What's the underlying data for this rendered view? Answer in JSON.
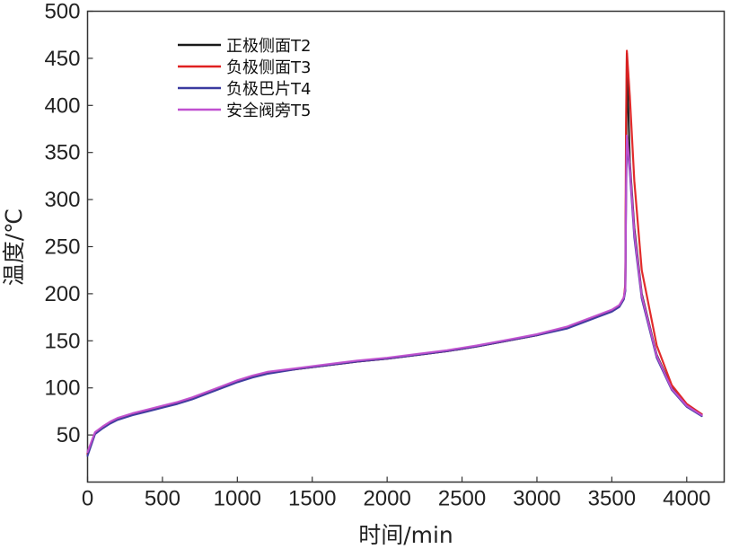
{
  "chart_data": {
    "type": "line",
    "title": "",
    "xlabel": "时间/min",
    "ylabel": "温度/℃",
    "xlim": [
      0,
      4250
    ],
    "ylim": [
      0,
      500
    ],
    "x_ticks": [
      "0",
      "500",
      "1000",
      "1500",
      "2000",
      "2500",
      "3000",
      "3500",
      "4000"
    ],
    "y_ticks": [
      "50",
      "100",
      "150",
      "200",
      "250",
      "300",
      "350",
      "400",
      "450",
      "500"
    ],
    "grid": false,
    "legend_position": "top-left",
    "series": [
      {
        "name": "正极侧面T2",
        "color": "#1a1a1a",
        "x": [
          0,
          50,
          100,
          150,
          200,
          300,
          400,
          500,
          600,
          700,
          800,
          900,
          1000,
          1100,
          1200,
          1400,
          1600,
          1800,
          2000,
          2200,
          2400,
          2600,
          2800,
          3000,
          3200,
          3400,
          3500,
          3550,
          3580,
          3590,
          3595,
          3600,
          3620,
          3650,
          3700,
          3800,
          3900,
          4000,
          4100
        ],
        "values": [
          30,
          52,
          58,
          63,
          67,
          72,
          76,
          80,
          84,
          89,
          95,
          101,
          107,
          112,
          116,
          120,
          124,
          128,
          131,
          135,
          139,
          144,
          150,
          156,
          164,
          176,
          182,
          187,
          195,
          205,
          320,
          455,
          340,
          270,
          200,
          135,
          100,
          82,
          72
        ]
      },
      {
        "name": "负极侧面T3",
        "color": "#e02020",
        "x": [
          0,
          50,
          100,
          150,
          200,
          300,
          400,
          500,
          600,
          700,
          800,
          900,
          1000,
          1100,
          1200,
          1400,
          1600,
          1800,
          2000,
          2200,
          2400,
          2600,
          2800,
          3000,
          3200,
          3400,
          3500,
          3550,
          3580,
          3590,
          3595,
          3600,
          3620,
          3650,
          3700,
          3800,
          3900,
          4000,
          4100
        ],
        "values": [
          30,
          52,
          58,
          63,
          67,
          72,
          76,
          80,
          84,
          89,
          95,
          101,
          107,
          112,
          116,
          120,
          124,
          128,
          131,
          135,
          139,
          144,
          150,
          156,
          164,
          176,
          182,
          187,
          195,
          210,
          380,
          458,
          410,
          320,
          225,
          145,
          103,
          83,
          72
        ]
      },
      {
        "name": "负极巴片T4",
        "color": "#3a3aa0",
        "x": [
          0,
          50,
          100,
          150,
          200,
          300,
          400,
          500,
          600,
          700,
          800,
          900,
          1000,
          1100,
          1200,
          1400,
          1600,
          1800,
          2000,
          2200,
          2400,
          2600,
          2800,
          3000,
          3200,
          3400,
          3500,
          3550,
          3580,
          3590,
          3595,
          3600,
          3620,
          3650,
          3700,
          3800,
          3900,
          4000,
          4100
        ],
        "values": [
          28,
          51,
          57,
          62,
          66,
          71,
          75,
          79,
          83,
          88,
          94,
          100,
          106,
          111,
          115,
          120,
          124,
          128,
          131,
          135,
          139,
          144,
          150,
          156,
          163,
          175,
          181,
          186,
          194,
          203,
          300,
          362,
          330,
          260,
          195,
          132,
          98,
          80,
          70
        ]
      },
      {
        "name": "安全阀旁T5",
        "color": "#c050d0",
        "x": [
          0,
          50,
          100,
          150,
          200,
          300,
          400,
          500,
          600,
          700,
          800,
          900,
          1000,
          1100,
          1200,
          1400,
          1600,
          1800,
          2000,
          2200,
          2400,
          2600,
          2800,
          3000,
          3200,
          3400,
          3500,
          3550,
          3580,
          3590,
          3595,
          3600,
          3620,
          3650,
          3700,
          3800,
          3900,
          4000,
          4100
        ],
        "values": [
          32,
          53,
          59,
          64,
          68,
          73,
          77,
          81,
          85,
          90,
          96,
          102,
          108,
          113,
          117,
          121,
          125,
          129,
          132,
          136,
          140,
          145,
          151,
          157,
          165,
          177,
          183,
          188,
          196,
          206,
          310,
          368,
          335,
          265,
          198,
          134,
          99,
          81,
          71
        ]
      }
    ]
  }
}
